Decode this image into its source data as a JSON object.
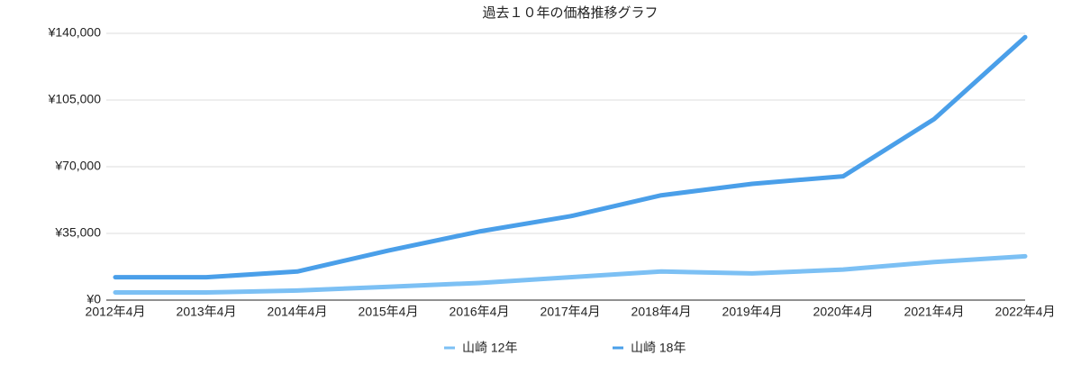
{
  "chart_data": {
    "type": "line",
    "title": "過去１０年の価格推移グラフ",
    "categories": [
      "2012年4月",
      "2013年4月",
      "2014年4月",
      "2015年4月",
      "2016年4月",
      "2017年4月",
      "2018年4月",
      "2019年4月",
      "2020年4月",
      "2021年4月",
      "2022年4月"
    ],
    "series": [
      {
        "name": "山崎 12年",
        "color": "#7cc0f4",
        "values": [
          4000,
          4000,
          5000,
          7000,
          9000,
          12000,
          15000,
          14000,
          16000,
          20000,
          23000
        ]
      },
      {
        "name": "山崎 18年",
        "color": "#4a9fe9",
        "values": [
          12000,
          12000,
          15000,
          26000,
          36000,
          44000,
          55000,
          61000,
          65000,
          95000,
          138000
        ]
      }
    ],
    "ylim": [
      0,
      140000
    ],
    "yticks": [
      {
        "value": 0,
        "label": "¥0"
      },
      {
        "value": 35000,
        "label": "¥35,000"
      },
      {
        "value": 70000,
        "label": "¥70,000"
      },
      {
        "value": 105000,
        "label": "¥105,000"
      },
      {
        "value": 140000,
        "label": "¥140,000"
      }
    ],
    "grid": true,
    "legend": "bottom"
  }
}
